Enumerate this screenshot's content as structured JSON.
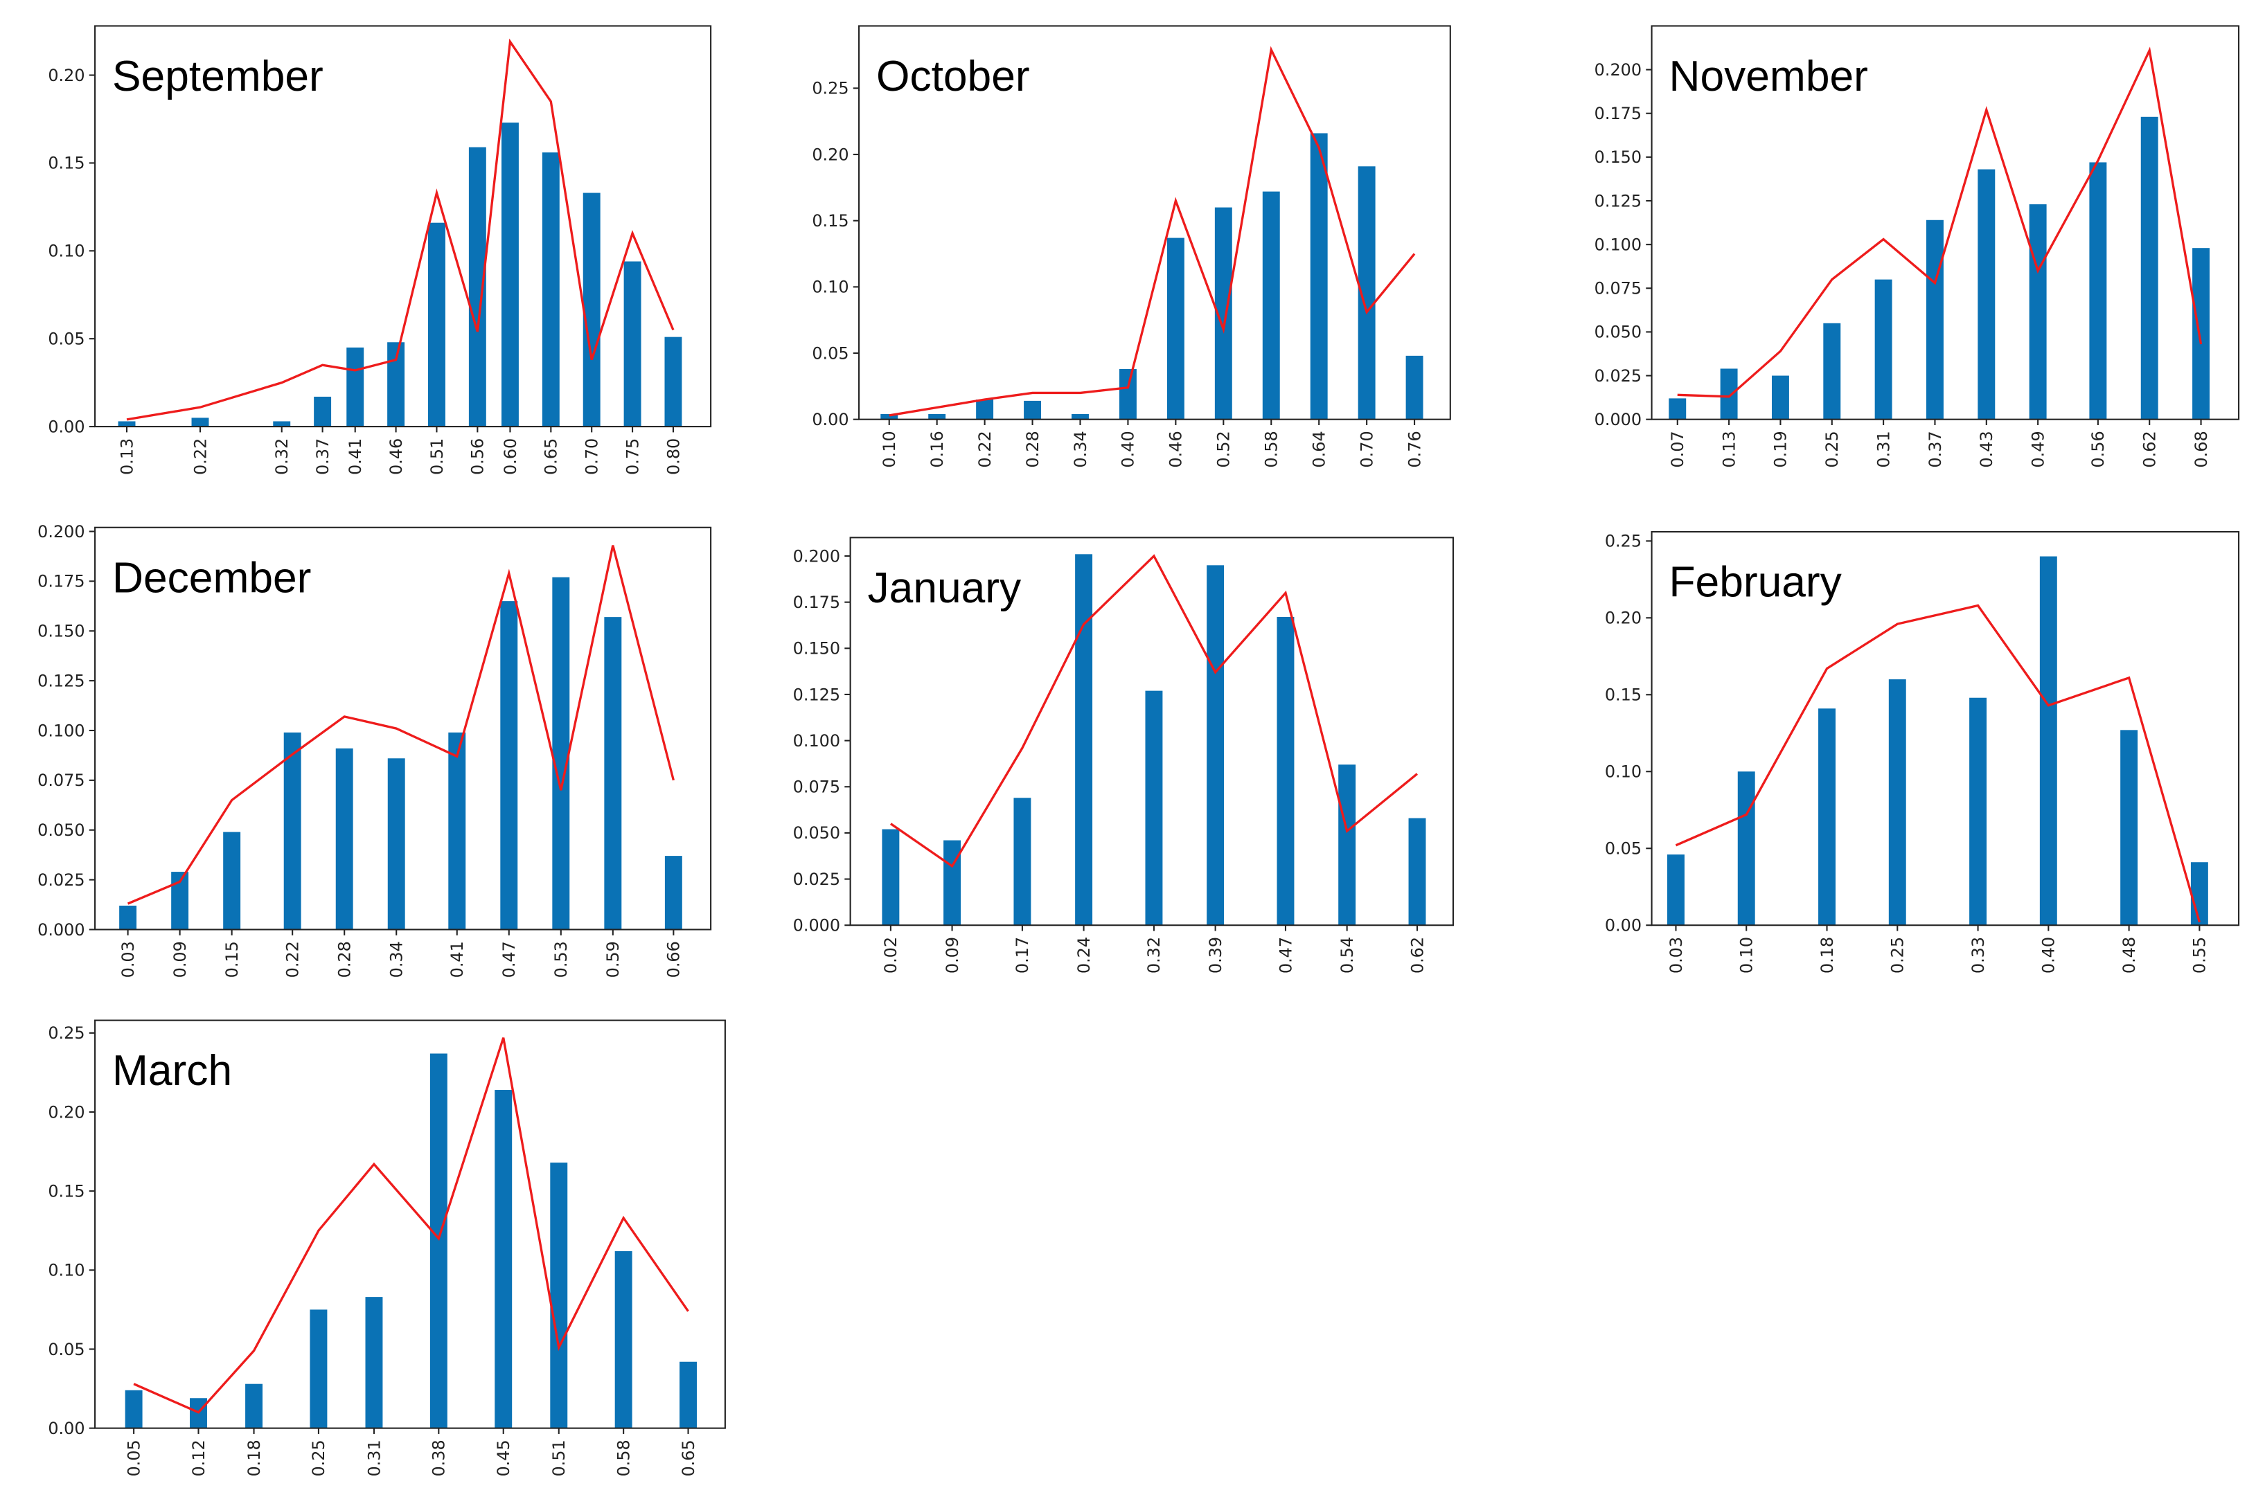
{
  "chart_data": [
    {
      "type": "bar",
      "title": "September",
      "x": [
        0.13,
        0.22,
        0.32,
        0.37,
        0.41,
        0.46,
        0.51,
        0.56,
        0.6,
        0.65,
        0.7,
        0.75,
        0.8
      ],
      "series": [
        {
          "type": "bar",
          "color": "#0a72b5",
          "values": [
            0.003,
            0.005,
            0.003,
            0.017,
            0.045,
            0.048,
            0.116,
            0.159,
            0.173,
            0.156,
            0.133,
            0.094,
            0.051
          ]
        },
        {
          "type": "line",
          "color": "#ee1c1c",
          "values": [
            0.004,
            0.011,
            0.025,
            0.035,
            0.032,
            0.038,
            0.133,
            0.054,
            0.219,
            0.185,
            0.038,
            0.11,
            0.055
          ]
        }
      ],
      "xlim": [
        0.091,
        0.846
      ],
      "ylim": [
        0,
        0.228
      ],
      "xticks": [
        0.13,
        0.22,
        0.32,
        0.37,
        0.41,
        0.46,
        0.51,
        0.56,
        {
          "value": 0.6,
          "label": "0.60"
        },
        0.65,
        {
          "value": 0.7,
          "label": "0.70"
        },
        0.75,
        {
          "value": 0.8,
          "label": "0.80"
        }
      ],
      "yticks": [
        {
          "value": 0,
          "label": "0.00"
        },
        0.05,
        {
          "value": 0.1,
          "label": "0.10"
        },
        0.15,
        {
          "value": 0.2,
          "label": "0.20"
        }
      ]
    },
    {
      "type": "bar",
      "title": "October",
      "x": [
        0.1,
        0.16,
        0.22,
        0.28,
        0.34,
        0.4,
        0.46,
        0.52,
        0.58,
        0.64,
        0.7,
        0.76
      ],
      "series": [
        {
          "type": "bar",
          "color": "#0a72b5",
          "values": [
            0.004,
            0.004,
            0.015,
            0.014,
            0.004,
            0.038,
            0.137,
            0.16,
            0.172,
            0.216,
            0.191,
            0.048
          ]
        },
        {
          "type": "line",
          "color": "#ee1c1c",
          "values": [
            0.003,
            0.009,
            0.015,
            0.02,
            0.02,
            0.024,
            0.165,
            0.068,
            0.279,
            0.205,
            0.081,
            0.125
          ]
        }
      ],
      "xlim": [
        0.062,
        0.805
      ],
      "ylim": [
        0,
        0.297
      ],
      "xticks": [
        {
          "value": 0.1,
          "label": "0.10"
        },
        0.16,
        0.22,
        0.28,
        0.34,
        {
          "value": 0.4,
          "label": "0.40"
        },
        0.46,
        0.52,
        0.58,
        0.64,
        {
          "value": 0.7,
          "label": "0.70"
        },
        0.76
      ],
      "yticks": [
        {
          "value": 0,
          "label": "0.00"
        },
        0.05,
        {
          "value": 0.1,
          "label": "0.10"
        },
        0.15,
        {
          "value": 0.2,
          "label": "0.20"
        },
        0.25
      ]
    },
    {
      "type": "bar",
      "title": "November",
      "x": [
        0.07,
        0.13,
        0.19,
        0.25,
        0.31,
        0.37,
        0.43,
        0.49,
        0.56,
        0.62,
        0.68
      ],
      "series": [
        {
          "type": "bar",
          "color": "#0a72b5",
          "values": [
            0.012,
            0.029,
            0.025,
            0.055,
            0.08,
            0.114,
            0.143,
            0.123,
            0.147,
            0.173,
            0.098
          ]
        },
        {
          "type": "line",
          "color": "#ee1c1c",
          "values": [
            0.014,
            0.013,
            0.039,
            0.08,
            0.103,
            0.078,
            0.177,
            0.085,
            0.148,
            0.211,
            0.043
          ]
        }
      ],
      "xlim": [
        0.04,
        0.724
      ],
      "ylim": [
        0,
        0.225
      ],
      "xticks": [
        0.07,
        0.13,
        0.19,
        0.25,
        0.31,
        0.37,
        0.43,
        0.49,
        0.56,
        0.62,
        0.68
      ],
      "yticks": [
        {
          "value": 0,
          "label": "0.000"
        },
        0.025,
        {
          "value": 0.05,
          "label": "0.050"
        },
        0.075,
        {
          "value": 0.1,
          "label": "0.100"
        },
        0.125,
        {
          "value": 0.15,
          "label": "0.150"
        },
        0.175,
        {
          "value": 0.2,
          "label": "0.200"
        }
      ]
    },
    {
      "type": "bar",
      "title": "December",
      "x": [
        0.03,
        0.09,
        0.15,
        0.22,
        0.28,
        0.34,
        0.41,
        0.47,
        0.53,
        0.59,
        0.66
      ],
      "series": [
        {
          "type": "bar",
          "color": "#0a72b5",
          "values": [
            0.012,
            0.029,
            0.049,
            0.099,
            0.091,
            0.086,
            0.099,
            0.165,
            0.177,
            0.157,
            0.037
          ]
        },
        {
          "type": "line",
          "color": "#ee1c1c",
          "values": [
            0.013,
            0.024,
            0.065,
            0.088,
            0.107,
            0.101,
            0.087,
            0.179,
            0.07,
            0.193,
            0.075
          ]
        }
      ],
      "xlim": [
        -0.008,
        0.703
      ],
      "ylim": [
        0,
        0.202
      ],
      "xticks": [
        0.03,
        0.09,
        0.15,
        0.22,
        0.28,
        0.34,
        0.41,
        0.47,
        0.53,
        0.59,
        0.66
      ],
      "yticks": [
        {
          "value": 0,
          "label": "0.000"
        },
        0.025,
        {
          "value": 0.05,
          "label": "0.050"
        },
        0.075,
        {
          "value": 0.1,
          "label": "0.100"
        },
        0.125,
        {
          "value": 0.15,
          "label": "0.150"
        },
        0.175,
        {
          "value": 0.2,
          "label": "0.200"
        }
      ]
    },
    {
      "type": "bar",
      "title": "January",
      "x": [
        0.02,
        0.09,
        0.17,
        0.24,
        0.32,
        0.39,
        0.47,
        0.54,
        0.62
      ],
      "series": [
        {
          "type": "bar",
          "color": "#0a72b5",
          "values": [
            0.052,
            0.046,
            0.069,
            0.201,
            0.127,
            0.195,
            0.167,
            0.087,
            0.058
          ]
        },
        {
          "type": "line",
          "color": "#ee1c1c",
          "values": [
            0.055,
            0.032,
            0.096,
            0.163,
            0.2,
            0.137,
            0.18,
            0.051,
            0.082
          ]
        }
      ],
      "xlim": [
        -0.026,
        0.661
      ],
      "ylim": [
        0,
        0.21
      ],
      "xticks": [
        0.02,
        0.09,
        0.17,
        0.24,
        0.32,
        0.39,
        0.47,
        0.54,
        0.62
      ],
      "yticks": [
        {
          "value": 0,
          "label": "0.000"
        },
        0.025,
        {
          "value": 0.05,
          "label": "0.050"
        },
        0.075,
        {
          "value": 0.1,
          "label": "0.100"
        },
        0.125,
        {
          "value": 0.15,
          "label": "0.150"
        },
        0.175,
        {
          "value": 0.2,
          "label": "0.200"
        }
      ]
    },
    {
      "type": "bar",
      "title": "February",
      "x": [
        0.03,
        0.1,
        0.18,
        0.25,
        0.33,
        0.4,
        0.48,
        0.55
      ],
      "series": [
        {
          "type": "bar",
          "color": "#0a72b5",
          "values": [
            0.046,
            0.1,
            0.141,
            0.16,
            0.148,
            0.24,
            0.127,
            0.041
          ]
        },
        {
          "type": "line",
          "color": "#ee1c1c",
          "values": [
            0.052,
            0.072,
            0.167,
            0.196,
            0.208,
            0.143,
            0.161,
            0.002
          ]
        }
      ],
      "xlim": [
        0.006,
        0.589
      ],
      "ylim": [
        0,
        0.256
      ],
      "xticks": [
        0.03,
        {
          "value": 0.1,
          "label": "0.10"
        },
        0.18,
        0.25,
        0.33,
        {
          "value": 0.4,
          "label": "0.40"
        },
        0.48,
        0.55
      ],
      "yticks": [
        {
          "value": 0,
          "label": "0.00"
        },
        0.05,
        {
          "value": 0.1,
          "label": "0.10"
        },
        0.15,
        {
          "value": 0.2,
          "label": "0.20"
        },
        0.25
      ]
    },
    {
      "type": "bar",
      "title": "March",
      "x": [
        0.05,
        0.12,
        0.18,
        0.25,
        0.31,
        0.38,
        0.45,
        0.51,
        0.58,
        0.65
      ],
      "series": [
        {
          "type": "bar",
          "color": "#0a72b5",
          "values": [
            0.024,
            0.019,
            0.028,
            0.075,
            0.083,
            0.237,
            0.214,
            0.168,
            0.112,
            0.042
          ]
        },
        {
          "type": "line",
          "color": "#ee1c1c",
          "values": [
            0.028,
            0.01,
            0.049,
            0.125,
            0.167,
            0.12,
            0.247,
            0.051,
            0.133,
            0.074
          ]
        }
      ],
      "xlim": [
        0.008,
        0.69
      ],
      "ylim": [
        0,
        0.258
      ],
      "xticks": [
        0.05,
        0.12,
        0.18,
        0.25,
        0.31,
        0.38,
        0.45,
        0.51,
        0.58,
        0.65
      ],
      "yticks": [
        {
          "value": 0,
          "label": "0.00"
        },
        0.05,
        {
          "value": 0.1,
          "label": "0.10"
        },
        0.15,
        {
          "value": 0.2,
          "label": "0.20"
        },
        0.25
      ]
    }
  ]
}
